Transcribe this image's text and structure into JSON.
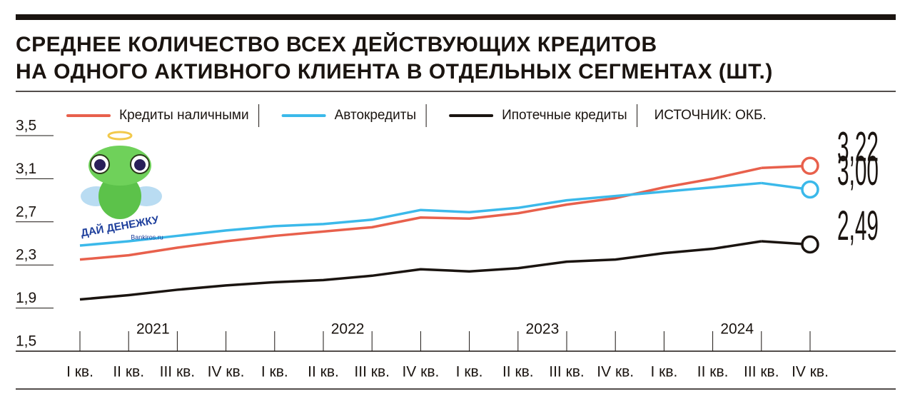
{
  "chart_data": {
    "type": "line",
    "title": "СРЕДНЕЕ КОЛИЧЕСТВО ВСЕХ ДЕЙСТВУЮЩИХ КРЕДИТОВ",
    "subtitle": "НА ОДНОГО АКТИВНОГО КЛИЕНТА В ОТДЕЛЬНЫХ СЕГМЕНТАХ (ШТ.)",
    "source": "ИСТОЧНИК: ОКБ.",
    "watermark": {
      "text": "ДАЙ ДЕНЕЖКУ",
      "site": "Bankiros.ru"
    },
    "x_groups": [
      "2021",
      "2022",
      "2023",
      "2024"
    ],
    "categories": [
      "I кв.",
      "II кв.",
      "III кв.",
      "IV кв.",
      "I кв.",
      "II кв.",
      "III кв.",
      "IV кв.",
      "I кв.",
      "II кв.",
      "III кв.",
      "IV кв.",
      "I кв.",
      "II кв.",
      "III кв.",
      "IV кв."
    ],
    "series": [
      {
        "name": "Кредиты наличными",
        "color": "#e8604c",
        "values": [
          2.35,
          2.39,
          2.46,
          2.52,
          2.57,
          2.61,
          2.65,
          2.74,
          2.73,
          2.78,
          2.86,
          2.92,
          3.02,
          3.1,
          3.2,
          3.22
        ],
        "value_labels": [
          null,
          null,
          null,
          null,
          null,
          null,
          null,
          null,
          null,
          null,
          null,
          null,
          null,
          null,
          null,
          "3,22"
        ]
      },
      {
        "name": "Автокредиты",
        "color": "#3bb9ea",
        "values": [
          2.48,
          2.52,
          2.57,
          2.62,
          2.66,
          2.68,
          2.72,
          2.81,
          2.79,
          2.83,
          2.9,
          2.94,
          2.98,
          3.02,
          3.06,
          3.0
        ],
        "value_labels": [
          null,
          null,
          null,
          null,
          null,
          null,
          null,
          null,
          null,
          null,
          null,
          null,
          null,
          null,
          null,
          "3,00"
        ]
      },
      {
        "name": "Ипотечные кредиты",
        "color": "#1a1410",
        "values": [
          1.98,
          2.02,
          2.07,
          2.11,
          2.14,
          2.16,
          2.2,
          2.26,
          2.24,
          2.27,
          2.33,
          2.35,
          2.41,
          2.45,
          2.52,
          2.49
        ],
        "value_labels": [
          null,
          null,
          null,
          null,
          null,
          null,
          null,
          null,
          null,
          null,
          null,
          null,
          null,
          null,
          null,
          "2,49"
        ]
      }
    ],
    "ylim": [
      1.5,
      3.5
    ],
    "yticks": [
      {
        "value": 1.5,
        "label": "1,5"
      },
      {
        "value": 1.9,
        "label": "1,9"
      },
      {
        "value": 2.3,
        "label": "2,3"
      },
      {
        "value": 2.7,
        "label": "2,7"
      },
      {
        "value": 3.1,
        "label": "3,1"
      },
      {
        "value": 3.5,
        "label": "3,5"
      }
    ]
  }
}
